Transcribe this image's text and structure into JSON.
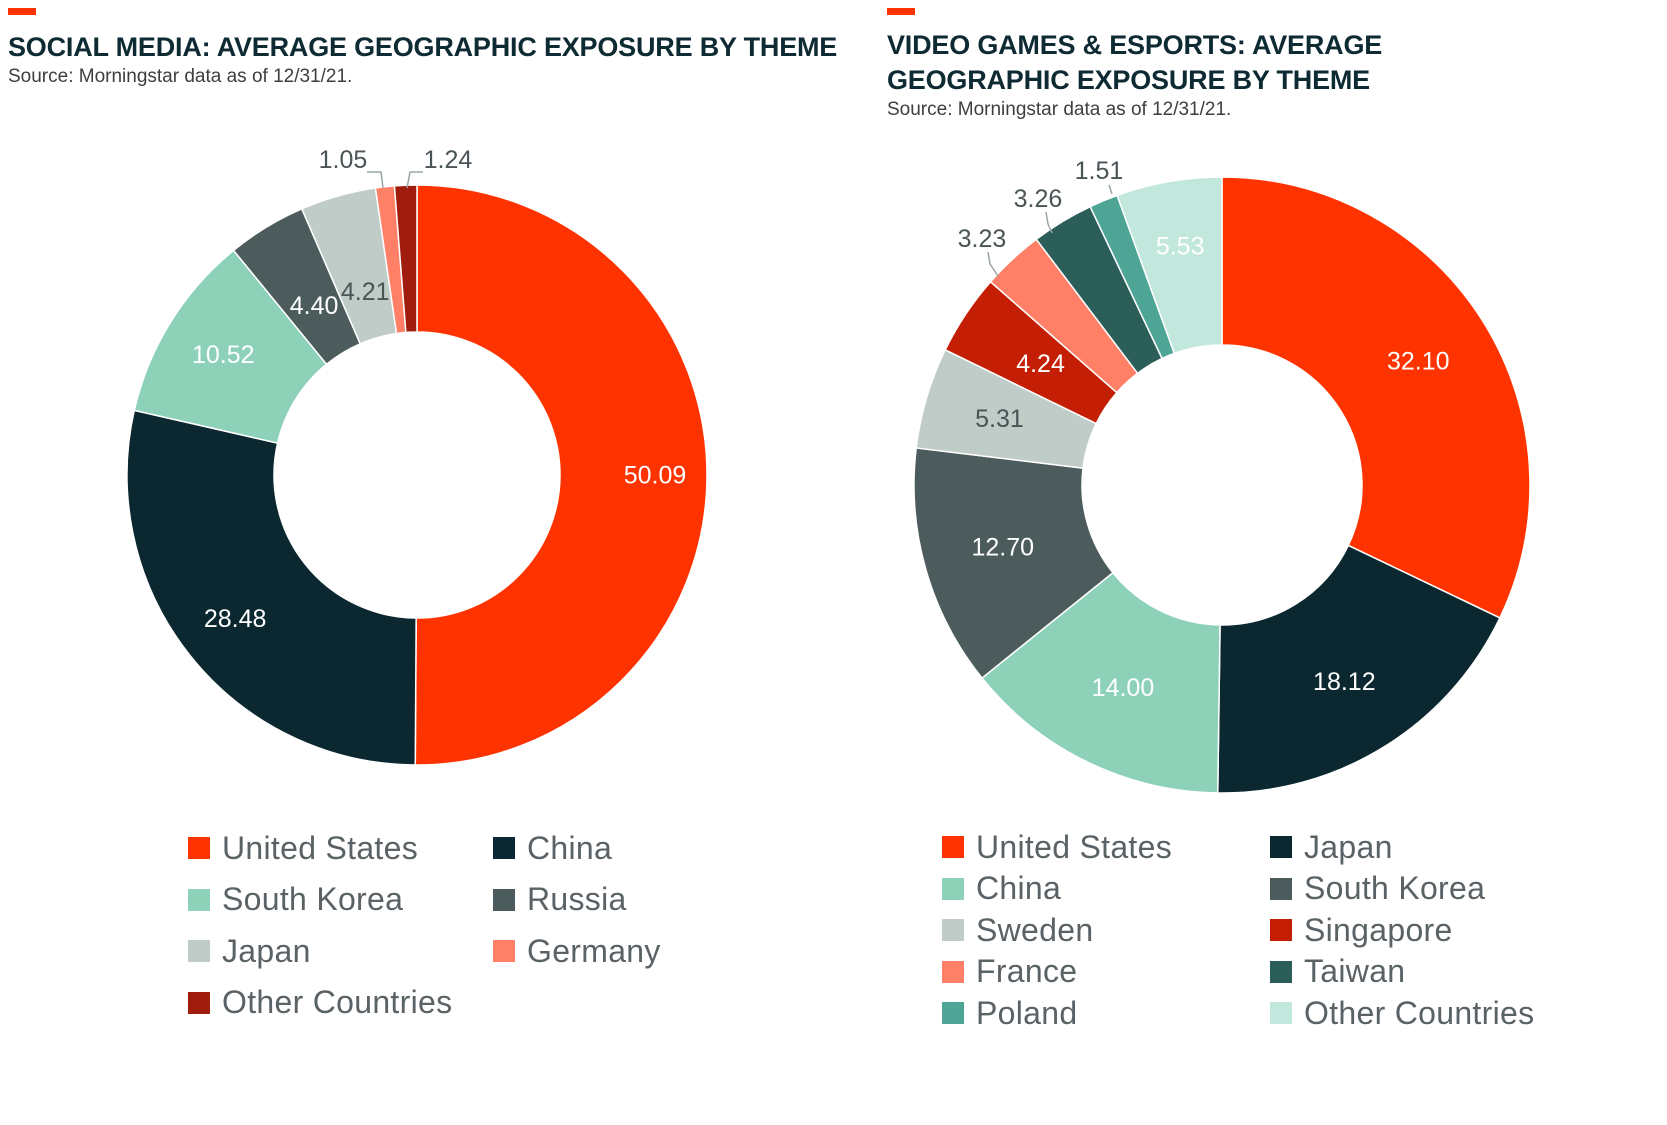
{
  "colors": {
    "accent": "#ff3300",
    "title": "#0e2a33",
    "label_light": "#ffffff",
    "label_dark": "#4a5457",
    "leader": "#9aa5a8"
  },
  "chart_data": [
    {
      "type": "pie",
      "title": "SOCIAL MEDIA: AVERAGE GEOGRAPHIC EXPOSURE BY THEME",
      "subtitle": "Source: Morningstar data as of 12/31/21.",
      "donut": true,
      "legend_position": "bottom",
      "categories": [
        "United States",
        "China",
        "South Korea",
        "Russia",
        "Japan",
        "Germany",
        "Other Countries"
      ],
      "values": [
        50.09,
        28.48,
        10.52,
        4.4,
        4.21,
        1.05,
        1.24
      ],
      "value_labels": [
        "50.09",
        "28.48",
        "10.52",
        "4.40",
        "4.21",
        "1.05",
        "1.24"
      ],
      "colors": [
        "#ff3300",
        "#0b2830",
        "#8dd1b9",
        "#4c5c5c",
        "#c0ccc7",
        "#ff8066",
        "#a01c0c"
      ],
      "legend_order": [
        "United States",
        "China",
        "South Korea",
        "Russia",
        "Japan",
        "Germany",
        "Other Countries"
      ]
    },
    {
      "type": "pie",
      "title": "VIDEO GAMES & ESPORTS: AVERAGE GEOGRAPHIC EXPOSURE BY THEME",
      "subtitle": "Source: Morningstar data as of 12/31/21.",
      "donut": true,
      "legend_position": "bottom",
      "categories": [
        "United States",
        "Japan",
        "China",
        "South Korea",
        "Sweden",
        "Singapore",
        "France",
        "Taiwan",
        "Poland",
        "Other Countries"
      ],
      "values": [
        32.1,
        18.12,
        14.0,
        12.7,
        5.31,
        4.24,
        3.23,
        3.26,
        1.51,
        5.53
      ],
      "value_labels": [
        "32.10",
        "18.12",
        "14.00",
        "12.70",
        "5.31",
        "4.24",
        "3.23",
        "3.26",
        "1.51",
        "5.53"
      ],
      "colors": [
        "#ff3300",
        "#0b2830",
        "#8dd1b9",
        "#4c5c5c",
        "#c0ccc7",
        "#c41f05",
        "#ff8066",
        "#2b5e59",
        "#4ea595",
        "#c2e7dc"
      ],
      "legend_order": [
        "United States",
        "Japan",
        "China",
        "South Korea",
        "Sweden",
        "Singapore",
        "France",
        "Taiwan",
        "Poland",
        "Other Countries"
      ]
    }
  ]
}
